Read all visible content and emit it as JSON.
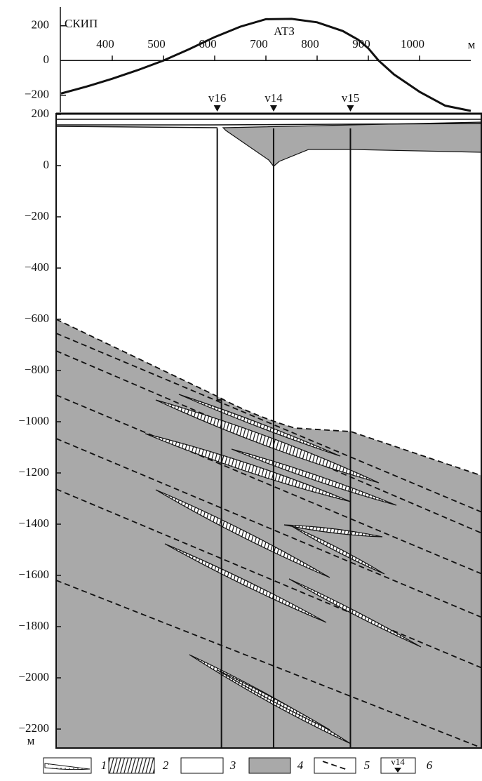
{
  "chart_data": [
    {
      "type": "line",
      "y_label": "СКИП",
      "x_unit": "м",
      "x": [
        300,
        350,
        400,
        450,
        500,
        550,
        600,
        650,
        700,
        750,
        800,
        850,
        880,
        900,
        920,
        950,
        1000,
        1050,
        1100
      ],
      "series": [
        {
          "name": "АТЗ",
          "color": "#111111",
          "values": [
            -190,
            -150,
            -105,
            -55,
            0,
            65,
            135,
            195,
            238,
            240,
            220,
            170,
            120,
            70,
            0,
            -80,
            -180,
            -260,
            -290
          ]
        }
      ],
      "xlim": [
        300,
        1100
      ],
      "xticks": [
        400,
        500,
        600,
        700,
        800,
        900,
        1000
      ],
      "ylim": [
        -290,
        300
      ],
      "yticks": [
        {
          "value": -200,
          "label": "−200"
        },
        0,
        200
      ]
    },
    {
      "type": "section",
      "y_unit": "м",
      "xlim": [
        300,
        1100
      ],
      "ylim": [
        -2274,
        200
      ],
      "yticks": [
        {
          "value": -2200,
          "label": "−2200"
        },
        {
          "value": -2000,
          "label": "−2000"
        },
        {
          "value": -1800,
          "label": "−1800"
        },
        {
          "value": -1600,
          "label": "−1600"
        },
        {
          "value": -1400,
          "label": "−1400"
        },
        {
          "value": -1200,
          "label": "−1200"
        },
        {
          "value": -1000,
          "label": "−1000"
        },
        {
          "value": -800,
          "label": "−800"
        },
        {
          "value": -600,
          "label": "−600"
        },
        {
          "value": -400,
          "label": "−400"
        },
        {
          "value": -200,
          "label": "−200"
        },
        0,
        200
      ],
      "wells": [
        {
          "name": "v16",
          "x": 605
        },
        {
          "name": "v14",
          "x": 715
        },
        {
          "name": "v15",
          "x": 865
        }
      ],
      "legend": [
        "1",
        "2",
        "3",
        "4",
        "5",
        "6"
      ],
      "legend_symbol_text": "v14"
    }
  ]
}
